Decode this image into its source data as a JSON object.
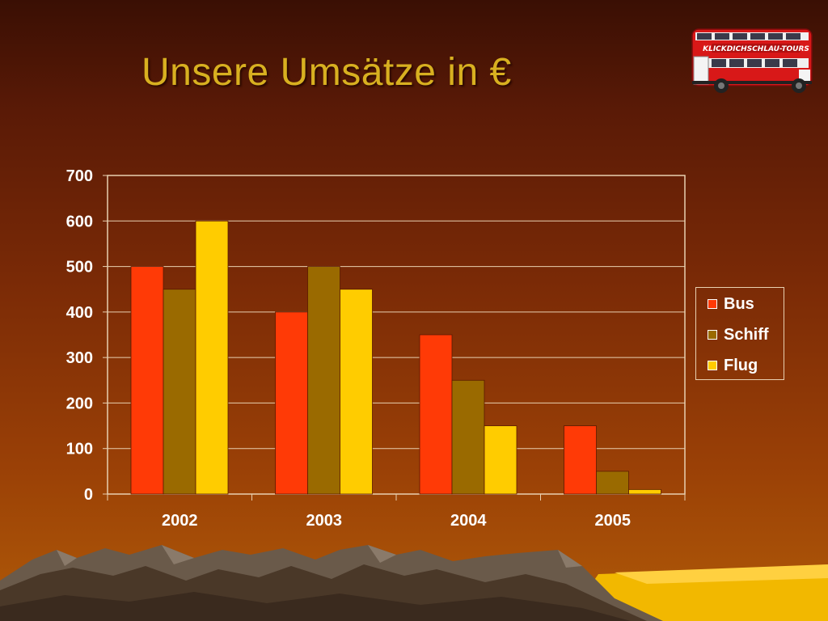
{
  "slide": {
    "title": "Unsere Umsätze in €",
    "bus_logo_text": "KLICKDICHSCHLAU-TOURS"
  },
  "colors": {
    "title": "#d8b020",
    "axis_text": "#ffffff",
    "gridline": "#e8d0b0"
  },
  "chart_data": {
    "type": "bar",
    "title": "",
    "xlabel": "",
    "ylabel": "",
    "categories": [
      "2002",
      "2003",
      "2004",
      "2005"
    ],
    "ylim": [
      0,
      700
    ],
    "yticks": [
      0,
      100,
      200,
      300,
      400,
      500,
      600,
      700
    ],
    "grid": true,
    "legend_position": "right",
    "series": [
      {
        "name": "Bus",
        "values": [
          500,
          400,
          350,
          150
        ],
        "color": "#ff3a06"
      },
      {
        "name": "Schiff",
        "values": [
          450,
          500,
          250,
          50
        ],
        "color": "#9a6a00"
      },
      {
        "name": "Flug",
        "values": [
          600,
          450,
          150,
          10
        ],
        "color": "#ffcc00"
      }
    ]
  }
}
